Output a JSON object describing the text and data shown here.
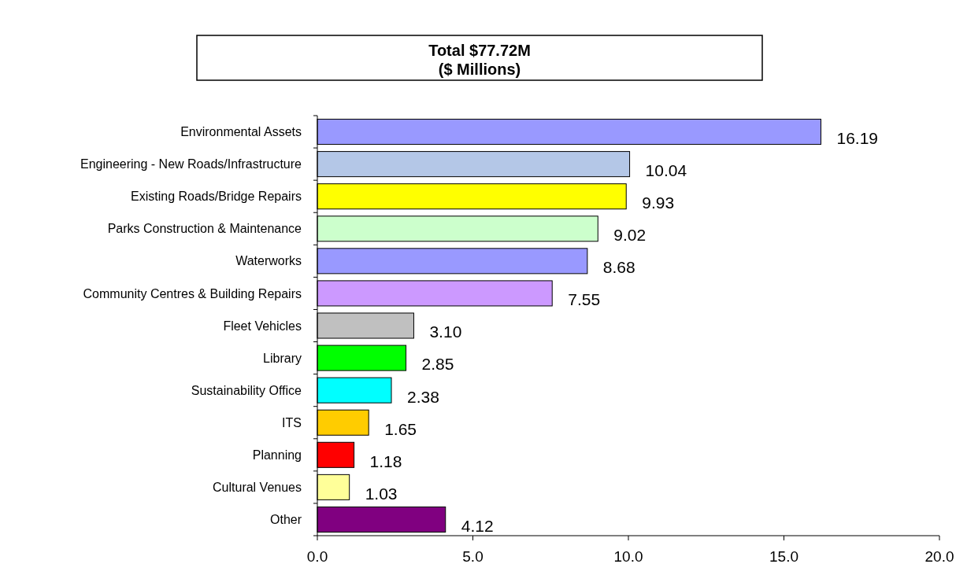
{
  "chart_data": {
    "type": "bar",
    "orientation": "horizontal",
    "title": "Total $77.72M",
    "subtitle": "($ Millions)",
    "categories": [
      "Environmental Assets",
      "Engineering - New Roads/Infrastructure",
      "Existing Roads/Bridge Repairs",
      "Parks Construction & Maintenance",
      "Waterworks",
      "Community Centres & Building Repairs",
      "Fleet Vehicles",
      "Library",
      "Sustainability Office",
      "ITS",
      "Planning",
      "Cultural Venues",
      "Other"
    ],
    "values": [
      16.19,
      10.04,
      9.93,
      9.02,
      8.68,
      7.55,
      3.1,
      2.85,
      2.38,
      1.65,
      1.18,
      1.03,
      4.12
    ],
    "value_labels": [
      "16.19",
      "10.04",
      "9.93",
      "9.02",
      "8.68",
      "7.55",
      "3.10",
      "2.85",
      "2.38",
      "1.65",
      "1.18",
      "1.03",
      "4.12"
    ],
    "colors": [
      "#9999ff",
      "#b4c7e7",
      "#ffff00",
      "#ccffcc",
      "#9999ff",
      "#cc99ff",
      "#c0c0c0",
      "#00ff00",
      "#00ffff",
      "#ffcc00",
      "#ff0000",
      "#ffff99",
      "#800080"
    ],
    "xlim": [
      0,
      20
    ],
    "xticks": [
      {
        "value": 0,
        "label": "0.0"
      },
      {
        "value": 5,
        "label": "5.0"
      },
      {
        "value": 10,
        "label": "10.0"
      },
      {
        "value": 15,
        "label": "15.0"
      },
      {
        "value": 20,
        "label": "20.0"
      }
    ],
    "grid": false
  }
}
